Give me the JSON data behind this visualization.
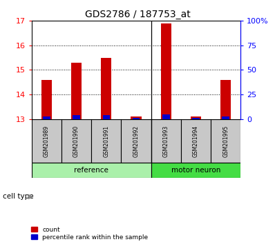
{
  "title": "GDS2786 / 187753_at",
  "samples": [
    "GSM201989",
    "GSM201990",
    "GSM201991",
    "GSM201992",
    "GSM201993",
    "GSM201994",
    "GSM201995"
  ],
  "red_values": [
    14.6,
    15.3,
    15.5,
    13.1,
    16.9,
    13.1,
    14.6
  ],
  "blue_values": [
    3,
    4,
    4,
    1,
    5,
    1,
    3
  ],
  "ylim_left": [
    13,
    17
  ],
  "ylim_right": [
    0,
    100
  ],
  "yticks_left": [
    13,
    14,
    15,
    16,
    17
  ],
  "yticks_right": [
    0,
    25,
    50,
    75,
    100
  ],
  "ytick_labels_right": [
    "0",
    "25",
    "50",
    "75",
    "100%"
  ],
  "group_colors": [
    "#aaf0aa",
    "#44dd44"
  ],
  "bar_width": 0.35,
  "red_color": "#cc0000",
  "blue_color": "#0000cc",
  "sample_bg": "#c8c8c8",
  "cell_type_label": "cell type",
  "legend_count": "count",
  "legend_percentile": "percentile rank within the sample",
  "bar_base": 13,
  "ref_group_label": "reference",
  "motor_group_label": "motor neuron"
}
